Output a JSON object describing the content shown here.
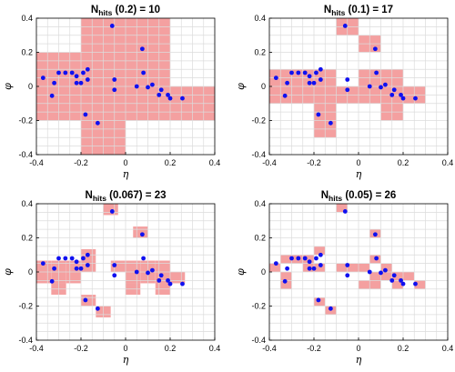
{
  "chart_data": [
    {
      "type": "scatter",
      "title_main": "N",
      "title_sub": "hits",
      "title_rest": "(0.2) = 10",
      "xlabel": "η",
      "ylabel": "φ",
      "xlim": [
        -0.4,
        0.4
      ],
      "ylim": [
        -0.4,
        0.4
      ],
      "xticks": [
        "-0.4",
        "-0.2",
        "0",
        "0.2",
        "0.4"
      ],
      "yticks": [
        "0.4",
        "0.2",
        "0",
        "-0.2",
        "-0.4"
      ],
      "grid": true,
      "colors": {
        "cells": "#f4a0a0",
        "points": "#1010f0",
        "grid": "#dcdcdc"
      },
      "cell_size": 0.2,
      "hit_cells": [
        [
          -0.1,
          0.3
        ],
        [
          0.1,
          0.3
        ],
        [
          -0.3,
          0.1
        ],
        [
          -0.1,
          0.1
        ],
        [
          0.1,
          0.1
        ],
        [
          -0.3,
          -0.1
        ],
        [
          -0.1,
          -0.1
        ],
        [
          0.1,
          -0.1
        ],
        [
          0.3,
          -0.1
        ],
        [
          -0.1,
          -0.3
        ]
      ],
      "points": [
        [
          -0.06,
          0.355
        ],
        [
          0.075,
          0.22
        ],
        [
          -0.37,
          0.05
        ],
        [
          -0.3,
          0.08
        ],
        [
          -0.27,
          0.08
        ],
        [
          -0.24,
          0.08
        ],
        [
          -0.22,
          0.06
        ],
        [
          -0.19,
          0.08
        ],
        [
          -0.17,
          0.1
        ],
        [
          -0.33,
          -0.055
        ],
        [
          -0.32,
          0.02
        ],
        [
          -0.22,
          0.02
        ],
        [
          -0.2,
          0.02
        ],
        [
          -0.17,
          0.04
        ],
        [
          -0.05,
          0.04
        ],
        [
          -0.05,
          -0.02
        ],
        [
          0.05,
          0.0
        ],
        [
          0.08,
          0.08
        ],
        [
          0.1,
          -0.005
        ],
        [
          0.12,
          0.01
        ],
        [
          0.15,
          -0.05
        ],
        [
          0.16,
          -0.02
        ],
        [
          0.19,
          -0.05
        ],
        [
          0.2,
          -0.07
        ],
        [
          0.255,
          -0.07
        ],
        [
          -0.18,
          -0.165
        ],
        [
          -0.125,
          -0.215
        ]
      ]
    },
    {
      "type": "scatter",
      "title_main": "N",
      "title_sub": "hits",
      "title_rest": "(0.1) = 17",
      "xlabel": "η",
      "ylabel": "φ",
      "xlim": [
        -0.4,
        0.4
      ],
      "ylim": [
        -0.4,
        0.4
      ],
      "xticks": [
        "-0.4",
        "-0.2",
        "0",
        "0.2",
        "0.4"
      ],
      "yticks": [
        "0.4",
        "0.2",
        "0",
        "-0.2",
        "-0.4"
      ],
      "grid": true,
      "colors": {
        "cells": "#f4a0a0",
        "points": "#1010f0",
        "grid": "#dcdcdc"
      },
      "cell_size": 0.1,
      "hit_cells": [
        [
          -0.05,
          0.35
        ],
        [
          0.05,
          0.25
        ],
        [
          -0.35,
          0.05
        ],
        [
          -0.25,
          0.05
        ],
        [
          -0.15,
          0.05
        ],
        [
          0.05,
          0.05
        ],
        [
          0.15,
          0.05
        ],
        [
          -0.35,
          -0.05
        ],
        [
          -0.25,
          -0.05
        ],
        [
          -0.15,
          -0.05
        ],
        [
          -0.05,
          -0.05
        ],
        [
          0.05,
          -0.05
        ],
        [
          0.15,
          -0.05
        ],
        [
          0.25,
          -0.05
        ],
        [
          0.15,
          -0.15
        ],
        [
          -0.15,
          -0.25
        ],
        [
          -0.15,
          -0.15
        ]
      ],
      "points": [
        [
          -0.06,
          0.355
        ],
        [
          0.075,
          0.22
        ],
        [
          -0.37,
          0.05
        ],
        [
          -0.3,
          0.08
        ],
        [
          -0.27,
          0.08
        ],
        [
          -0.24,
          0.08
        ],
        [
          -0.22,
          0.06
        ],
        [
          -0.19,
          0.08
        ],
        [
          -0.17,
          0.1
        ],
        [
          -0.33,
          -0.055
        ],
        [
          -0.32,
          0.02
        ],
        [
          -0.22,
          0.02
        ],
        [
          -0.2,
          0.02
        ],
        [
          -0.17,
          0.04
        ],
        [
          -0.05,
          0.04
        ],
        [
          -0.05,
          -0.02
        ],
        [
          0.05,
          0.0
        ],
        [
          0.08,
          0.08
        ],
        [
          0.1,
          -0.005
        ],
        [
          0.12,
          0.01
        ],
        [
          0.15,
          -0.05
        ],
        [
          0.16,
          -0.02
        ],
        [
          0.19,
          -0.05
        ],
        [
          0.2,
          -0.07
        ],
        [
          0.255,
          -0.07
        ],
        [
          -0.18,
          -0.165
        ],
        [
          -0.125,
          -0.215
        ]
      ]
    },
    {
      "type": "scatter",
      "title_main": "N",
      "title_sub": "hits",
      "title_rest": "(0.067) = 23",
      "xlabel": "η",
      "ylabel": "φ",
      "xlim": [
        -0.4,
        0.4
      ],
      "ylim": [
        -0.4,
        0.4
      ],
      "xticks": [
        "-0.4",
        "-0.2",
        "0",
        "0.2",
        "0.4"
      ],
      "yticks": [
        "0.4",
        "0.2",
        "0",
        "-0.2",
        "-0.4"
      ],
      "grid": true,
      "colors": {
        "cells": "#f4a0a0",
        "points": "#1010f0",
        "grid": "#dcdcdc"
      },
      "cell_size": 0.0667,
      "hit_cells": [
        [
          -0.067,
          0.367
        ],
        [
          0.067,
          0.233
        ],
        [
          -0.167,
          0.1
        ],
        [
          -0.367,
          0.033
        ],
        [
          -0.3,
          0.033
        ],
        [
          -0.233,
          0.033
        ],
        [
          -0.167,
          0.033
        ],
        [
          -0.3,
          -0.033
        ],
        [
          -0.233,
          -0.033
        ],
        [
          -0.367,
          -0.033
        ],
        [
          -0.033,
          0.033
        ],
        [
          0.033,
          0.033
        ],
        [
          0.1,
          0.033
        ],
        [
          0.033,
          -0.033
        ],
        [
          0.1,
          -0.033
        ],
        [
          0.167,
          -0.033
        ],
        [
          0.233,
          -0.033
        ],
        [
          0.167,
          0.033
        ],
        [
          0.167,
          -0.1
        ],
        [
          -0.3,
          -0.1
        ],
        [
          -0.167,
          -0.167
        ],
        [
          -0.1,
          -0.233
        ],
        [
          0.033,
          -0.1
        ]
      ],
      "points": [
        [
          -0.06,
          0.355
        ],
        [
          0.075,
          0.22
        ],
        [
          -0.37,
          0.05
        ],
        [
          -0.3,
          0.08
        ],
        [
          -0.27,
          0.08
        ],
        [
          -0.24,
          0.08
        ],
        [
          -0.22,
          0.06
        ],
        [
          -0.19,
          0.08
        ],
        [
          -0.17,
          0.1
        ],
        [
          -0.33,
          -0.055
        ],
        [
          -0.32,
          0.02
        ],
        [
          -0.22,
          0.02
        ],
        [
          -0.2,
          0.02
        ],
        [
          -0.17,
          0.04
        ],
        [
          -0.05,
          0.04
        ],
        [
          -0.05,
          -0.02
        ],
        [
          0.05,
          0.0
        ],
        [
          0.08,
          0.08
        ],
        [
          0.1,
          -0.005
        ],
        [
          0.12,
          0.01
        ],
        [
          0.15,
          -0.05
        ],
        [
          0.16,
          -0.02
        ],
        [
          0.19,
          -0.05
        ],
        [
          0.2,
          -0.07
        ],
        [
          0.255,
          -0.07
        ],
        [
          -0.18,
          -0.165
        ],
        [
          -0.125,
          -0.215
        ]
      ]
    },
    {
      "type": "scatter",
      "title_main": "N",
      "title_sub": "hits",
      "title_rest": "(0.05) = 26",
      "xlabel": "η",
      "ylabel": "φ",
      "xlim": [
        -0.4,
        0.4
      ],
      "ylim": [
        -0.4,
        0.4
      ],
      "xticks": [
        "-0.4",
        "-0.2",
        "0",
        "0.2",
        "0.4"
      ],
      "yticks": [
        "0.4",
        "0.2",
        "0",
        "-0.2",
        "-0.4"
      ],
      "grid": true,
      "colors": {
        "cells": "#f4a0a0",
        "points": "#1010f0",
        "grid": "#dcdcdc"
      },
      "cell_size": 0.05,
      "hit_cells": [
        [
          -0.075,
          0.375
        ],
        [
          0.075,
          0.225
        ],
        [
          -0.375,
          0.025
        ],
        [
          -0.325,
          0.075
        ],
        [
          -0.275,
          0.075
        ],
        [
          -0.225,
          0.075
        ],
        [
          -0.175,
          0.125
        ],
        [
          -0.325,
          -0.025
        ],
        [
          -0.225,
          0.025
        ],
        [
          -0.175,
          0.025
        ],
        [
          -0.325,
          -0.075
        ],
        [
          -0.075,
          0.025
        ],
        [
          -0.025,
          0.025
        ],
        [
          0.025,
          0.025
        ],
        [
          0.075,
          0.075
        ],
        [
          0.125,
          0.025
        ],
        [
          0.075,
          -0.025
        ],
        [
          0.125,
          -0.025
        ],
        [
          0.175,
          -0.025
        ],
        [
          0.225,
          -0.025
        ],
        [
          0.275,
          -0.075
        ],
        [
          0.175,
          -0.075
        ],
        [
          0.075,
          -0.075
        ],
        [
          -0.175,
          -0.175
        ],
        [
          -0.125,
          -0.225
        ],
        [
          0.025,
          -0.075
        ]
      ],
      "points": [
        [
          -0.06,
          0.355
        ],
        [
          0.075,
          0.22
        ],
        [
          -0.37,
          0.05
        ],
        [
          -0.3,
          0.08
        ],
        [
          -0.27,
          0.08
        ],
        [
          -0.24,
          0.08
        ],
        [
          -0.22,
          0.06
        ],
        [
          -0.19,
          0.08
        ],
        [
          -0.17,
          0.1
        ],
        [
          -0.33,
          -0.055
        ],
        [
          -0.32,
          0.02
        ],
        [
          -0.22,
          0.02
        ],
        [
          -0.2,
          0.02
        ],
        [
          -0.17,
          0.04
        ],
        [
          -0.05,
          0.04
        ],
        [
          -0.05,
          -0.02
        ],
        [
          0.05,
          0.0
        ],
        [
          0.08,
          0.08
        ],
        [
          0.1,
          -0.005
        ],
        [
          0.12,
          0.01
        ],
        [
          0.15,
          -0.05
        ],
        [
          0.16,
          -0.02
        ],
        [
          0.19,
          -0.05
        ],
        [
          0.2,
          -0.07
        ],
        [
          0.255,
          -0.07
        ],
        [
          -0.18,
          -0.165
        ],
        [
          -0.125,
          -0.215
        ]
      ]
    }
  ]
}
